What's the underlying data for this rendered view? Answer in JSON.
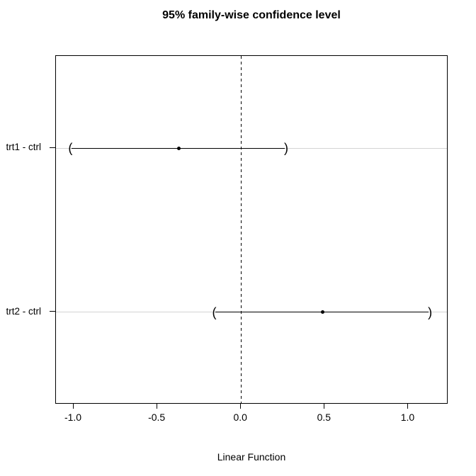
{
  "chart_data": {
    "type": "ci_interval",
    "title": "95% family-wise confidence level",
    "xlabel": "Linear Function",
    "rows": [
      {
        "label": "trt1 - ctrl",
        "estimate": -0.37,
        "lower": -1.02,
        "upper": 0.27,
        "row_fraction": 0.266
      },
      {
        "label": "trt2 - ctrl",
        "estimate": 0.49,
        "lower": -0.16,
        "upper": 1.13,
        "row_fraction": 0.738
      }
    ],
    "xticks": [
      -1.0,
      -0.5,
      0.0,
      0.5,
      1.0
    ],
    "xtick_labels": [
      "-1.0",
      "-0.5",
      "0.0",
      "0.5",
      "1.0"
    ],
    "xlim": [
      -1.106,
      1.231
    ],
    "reference_line": {
      "x": 0,
      "style": "dashed"
    },
    "grid": "horizontal lightgray lines at each comparison row",
    "legend": "none",
    "colors": {
      "line": "#000000",
      "grid": "#d3d3d3",
      "background": "#ffffff",
      "text": "#000000"
    },
    "paren_glyphs": {
      "lower": "(",
      "upper": ")"
    }
  }
}
